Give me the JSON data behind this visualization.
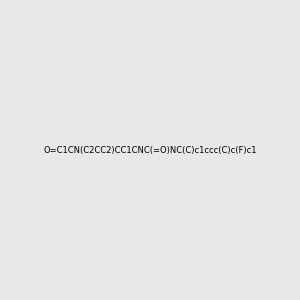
{
  "smiles": "O=C1CN(C2CC2)CC1CNC(=O)NC(C)c1ccc(C)c(F)c1",
  "image_size": 300,
  "background_color": "#e8e8e8",
  "atom_colors": {
    "N": "#0000FF",
    "O": "#FF0000",
    "F": "#FF00FF"
  },
  "title": ""
}
